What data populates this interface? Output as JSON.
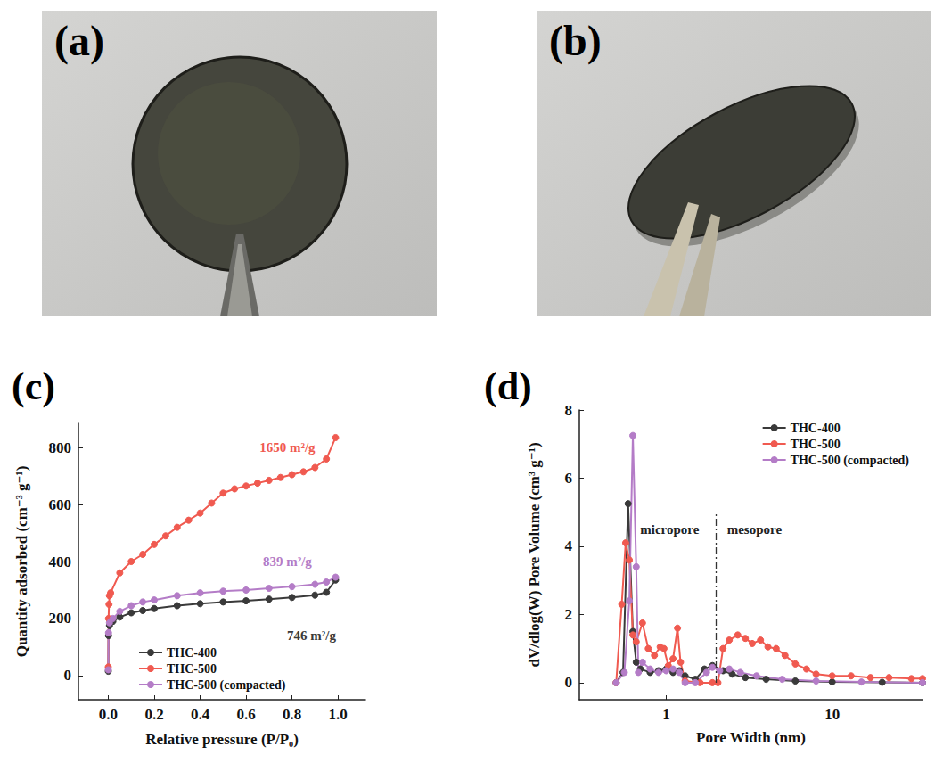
{
  "photos": [
    {
      "label": "(a)"
    },
    {
      "label": "(b)"
    }
  ],
  "chart_data": [
    {
      "type": "line",
      "title": "(c)",
      "x_label": "Relative pressure (P/P₀)",
      "y_label": "Quantity adsorbed (cm⁻³ g⁻¹)",
      "xlim": [
        -0.13,
        1.12
      ],
      "xticks": [
        {
          "value": 0,
          "label": "0.0"
        },
        {
          "value": 0.2,
          "label": "0.2"
        },
        {
          "value": 0.4,
          "label": "0.4"
        },
        {
          "value": 0.6,
          "label": "0.6"
        },
        {
          "value": 0.8,
          "label": "0.8"
        },
        {
          "value": 1,
          "label": "1.0"
        }
      ],
      "ylim": [
        -85,
        885
      ],
      "yticks": [
        0,
        200,
        400,
        600,
        800
      ],
      "grid": false,
      "legend": "lower left",
      "series": [
        {
          "name": "THC-400",
          "color": "#3a3a3a",
          "marker": "circle",
          "x": [
            0,
            0.001,
            0.005,
            0.02,
            0.05,
            0.1,
            0.15,
            0.2,
            0.3,
            0.4,
            0.5,
            0.6,
            0.7,
            0.8,
            0.9,
            0.95,
            0.99
          ],
          "values": [
            15,
            140,
            175,
            190,
            205,
            220,
            228,
            235,
            245,
            252,
            258,
            262,
            268,
            274,
            282,
            292,
            335
          ]
        },
        {
          "name": "THC-500",
          "color": "#f05a50",
          "marker": "circle",
          "x": [
            0,
            0.001,
            0.003,
            0.005,
            0.01,
            0.05,
            0.1,
            0.15,
            0.2,
            0.25,
            0.3,
            0.35,
            0.4,
            0.45,
            0.5,
            0.55,
            0.6,
            0.65,
            0.7,
            0.75,
            0.8,
            0.85,
            0.9,
            0.95,
            0.99
          ],
          "values": [
            30,
            200,
            250,
            280,
            290,
            360,
            400,
            425,
            460,
            490,
            520,
            545,
            570,
            605,
            640,
            655,
            665,
            675,
            685,
            695,
            705,
            715,
            730,
            760,
            835
          ]
        },
        {
          "name": "THC-500 (compacted)",
          "color": "#b47cc7",
          "marker": "circle",
          "x": [
            0,
            0.001,
            0.005,
            0.02,
            0.05,
            0.1,
            0.15,
            0.2,
            0.3,
            0.4,
            0.5,
            0.6,
            0.7,
            0.8,
            0.9,
            0.95,
            0.99
          ],
          "values": [
            20,
            150,
            185,
            200,
            225,
            245,
            258,
            265,
            280,
            290,
            296,
            300,
            306,
            312,
            320,
            328,
            345
          ]
        }
      ],
      "annotations": [
        {
          "text": "1650 m²/g",
          "x": 0.78,
          "y": 800,
          "color": "#f05a50"
        },
        {
          "text": "839 m²/g",
          "x": 0.78,
          "y": 400,
          "color": "#b47cc7"
        },
        {
          "text": "746 m²/g",
          "x": 0.885,
          "y": 140,
          "color": "#3a3a3a"
        }
      ]
    },
    {
      "type": "line",
      "title": "(d)",
      "x_label": "Pore Width (nm)",
      "y_label": "dV/dlog(W) Pore Volume (cm³ g⁻¹)",
      "log": "x",
      "xlim": [
        0.3,
        35
      ],
      "xticks": [
        1,
        10
      ],
      "ylim": [
        -0.5,
        8
      ],
      "yticks": [
        0,
        2,
        4,
        6,
        8
      ],
      "grid": false,
      "legend": "upper right",
      "series": [
        {
          "name": "THC-400",
          "color": "#3a3a3a",
          "marker": "circle",
          "x": [
            0.5,
            0.55,
            0.59,
            0.63,
            0.66,
            0.7,
            0.8,
            0.9,
            1.0,
            1.1,
            1.2,
            1.3,
            1.5,
            1.7,
            1.9,
            2.2,
            2.5,
            3,
            4,
            6,
            10,
            20,
            35
          ],
          "values": [
            0,
            0.3,
            5.25,
            1.5,
            0.6,
            0.4,
            0.3,
            0.35,
            0.4,
            0.3,
            0.35,
            0.2,
            0.1,
            0.4,
            0.5,
            0.35,
            0.25,
            0.15,
            0.1,
            0.05,
            0.02,
            0.01,
            0
          ]
        },
        {
          "name": "THC-500",
          "color": "#f05a50",
          "marker": "circle",
          "x": [
            0.5,
            0.54,
            0.57,
            0.6,
            0.63,
            0.66,
            0.72,
            0.78,
            0.85,
            0.92,
            0.97,
            1.03,
            1.1,
            1.17,
            1.22,
            1.3,
            1.6,
            1.9,
            2.05,
            2.2,
            2.4,
            2.7,
            3.0,
            3.3,
            3.7,
            4.1,
            4.6,
            5.2,
            6,
            7,
            8,
            10,
            13,
            17,
            22,
            30,
            35
          ],
          "values": [
            0,
            2.3,
            4.1,
            3.6,
            1.4,
            1.2,
            1.75,
            1.0,
            0.8,
            1.05,
            1.0,
            0.5,
            0.7,
            1.6,
            0.6,
            0.05,
            0,
            0,
            0,
            1.0,
            1.25,
            1.4,
            1.3,
            1.15,
            1.25,
            1.05,
            1.0,
            0.8,
            0.55,
            0.4,
            0.25,
            0.2,
            0.2,
            0.15,
            0.15,
            0.12,
            0.12
          ]
        },
        {
          "name": "THC-500 (compacted)",
          "color": "#b47cc7",
          "marker": "circle",
          "x": [
            0.5,
            0.56,
            0.6,
            0.63,
            0.66,
            0.68,
            0.72,
            0.8,
            0.9,
            1.0,
            1.1,
            1.2,
            1.3,
            1.5,
            1.75,
            1.9,
            2.1,
            2.4,
            2.8,
            3.5,
            5,
            8,
            15,
            35
          ],
          "values": [
            0,
            0.3,
            2.4,
            7.25,
            3.4,
            0.3,
            0.6,
            0.4,
            0.3,
            0.35,
            0.4,
            0.3,
            0,
            0,
            0.3,
            0.45,
            0.35,
            0.4,
            0.3,
            0.2,
            0.1,
            0.05,
            0.02,
            0
          ]
        }
      ],
      "annotations": [
        {
          "text": "micropore",
          "x": 1.05,
          "y": 4.5,
          "color": "#222222"
        },
        {
          "text": "mesopore",
          "x": 3.4,
          "y": 4.5,
          "color": "#222222"
        }
      ],
      "reference_line": {
        "x": 2,
        "y": [
          0,
          5
        ],
        "line_style": "dashdot",
        "color": "#333333"
      }
    }
  ]
}
